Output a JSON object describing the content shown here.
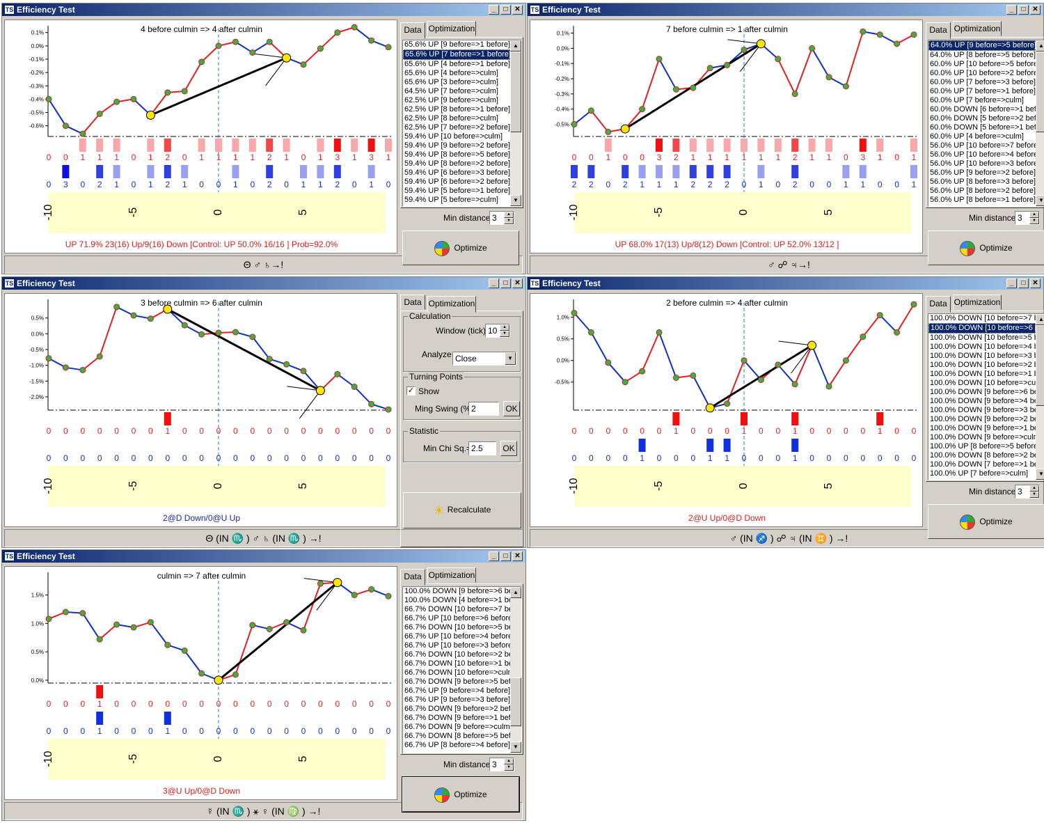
{
  "app": {
    "title": "Efficiency Test",
    "icon_text": "TS"
  },
  "tabs": {
    "data": "Data",
    "optimization": "Optimization"
  },
  "common": {
    "min_distance_label": "Min distance",
    "min_distance_value": "3",
    "optimize_label": "Optimize",
    "axis_ticks": [
      "-10",
      "-5",
      "0",
      "5"
    ]
  },
  "settings": {
    "calculation_group": "Calculation",
    "window_label": "Window (tick)",
    "window_value": "10",
    "analyze_label": "Analyze",
    "analyze_value": "Close",
    "turning_points_group": "Turning Points",
    "show_label": "Show",
    "ming_swing_label": "Ming Swing (%)",
    "ming_swing_value": "2",
    "statistic_group": "Statistic",
    "min_chi_label": "Min Chi Sq.=",
    "min_chi_value": "2.5",
    "ok_label": "OK",
    "recalculate_label": "Recalculate"
  },
  "windows": [
    {
      "caption": "4 before culmin => 4 after culmin",
      "status": "UP 71.9%  23(16) Up/9(16) Down [Control: UP 50.0%  16/16 ]  Prob=92.0%",
      "status_color": "#d42020",
      "bottom": "Θ ♂ ♄→!",
      "yticks": [
        "0.1%",
        "0.0%",
        "-0.1%",
        "-0.2%",
        "-0.3%",
        "-0.4%",
        "-0.5%",
        "-0.6%"
      ],
      "ymin": -0.68,
      "ymax": 0.13,
      "ytickvals": [
        0.1,
        0,
        -0.1,
        -0.2,
        -0.3,
        -0.4,
        -0.5,
        -0.6
      ],
      "series": [
        -0.4,
        -0.6,
        -0.66,
        -0.51,
        -0.42,
        -0.4,
        -0.52,
        -0.35,
        -0.34,
        -0.12,
        0.0,
        0.03,
        -0.05,
        0.03,
        -0.09,
        -0.14,
        -0.02,
        0.1,
        0.14,
        0.04,
        -0.01
      ],
      "seg_colors": [
        "b",
        "b",
        "r",
        "r",
        "r",
        "b",
        "r",
        "r",
        "r",
        "r",
        "r",
        "b",
        "b",
        "r",
        "b",
        "r",
        "r",
        "r",
        "b",
        "b"
      ],
      "trend_from": 6,
      "trend_to": 14,
      "red_counts": [
        "0",
        "0",
        "1",
        "1",
        "1",
        "0",
        "1",
        "2",
        "0",
        "1",
        "1",
        "1",
        "1",
        "2",
        "1",
        "0",
        "1",
        "3",
        "1",
        "3",
        "1"
      ],
      "blue_counts": [
        "0",
        "3",
        "0",
        "2",
        "1",
        "0",
        "1",
        "2",
        "1",
        "0",
        "0",
        "1",
        "0",
        "2",
        "0",
        "1",
        "1",
        "2",
        "0",
        "1",
        "0"
      ],
      "list": [
        "65.6%  UP [9 before=>1 before]",
        "65.6%  UP [7 before=>1 before]",
        "65.6%  UP [4 before=>1 before]",
        "65.6%  UP [4 before=>culm]",
        "65.6%  UP [3 before=>culm]",
        "64.5%  UP [7 before=>culm]",
        "62.5%  UP [9 before=>culm]",
        "62.5%  UP [8 before=>1 before]",
        "62.5%  UP [8 before=>culm]",
        "62.5%  UP [7 before=>2 before]",
        "59.4%  UP [10 before=>culm]",
        "59.4%  UP [9 before=>2 before]",
        "59.4%  UP [8 before=>5 before]",
        "59.4%  UP [8 before=>2 before]",
        "59.4%  UP [6 before=>3 before]",
        "59.4%  UP [6 before=>2 before]",
        "59.4%  UP [5 before=>1 before]",
        "59.4%  UP [5 before=>culm]"
      ],
      "selected": 1
    },
    {
      "caption": "7 before culmin => 1 after culmin",
      "status": "UP 68.0%  17(13) Up/8(12) Down [Control: UP 52.0%  13/12 ]",
      "status_color": "#d42020",
      "bottom": "♂ ☍ ♃→!",
      "yticks": [
        "0.1%",
        "0.0%",
        "-0.1%",
        "-0.2%",
        "-0.3%",
        "-0.4%",
        "-0.5%"
      ],
      "ymin": -0.58,
      "ymax": 0.13,
      "ytickvals": [
        0.1,
        0,
        -0.1,
        -0.2,
        -0.3,
        -0.4,
        -0.5
      ],
      "series": [
        -0.5,
        -0.41,
        -0.55,
        -0.53,
        -0.4,
        -0.07,
        -0.27,
        -0.26,
        -0.13,
        -0.11,
        -0.01,
        0.03,
        -0.07,
        -0.3,
        0.0,
        -0.19,
        -0.25,
        0.11,
        0.09,
        0.03,
        0.09
      ],
      "seg_colors": [
        "b",
        "r",
        "r",
        "r",
        "r",
        "b",
        "r",
        "r",
        "b",
        "b",
        "b",
        "b",
        "r",
        "r",
        "b",
        "b",
        "r",
        "b",
        "b",
        "r"
      ],
      "trend_from": 3,
      "trend_to": 11,
      "red_counts": [
        "0",
        "0",
        "1",
        "0",
        "0",
        "3",
        "2",
        "1",
        "1",
        "1",
        "1",
        "1",
        "1",
        "2",
        "1",
        "1",
        "0",
        "3",
        "1",
        "0",
        "1"
      ],
      "blue_counts": [
        "2",
        "2",
        "0",
        "2",
        "1",
        "1",
        "1",
        "2",
        "2",
        "2",
        "0",
        "1",
        "0",
        "2",
        "0",
        "0",
        "1",
        "1",
        "0",
        "0",
        "1"
      ],
      "list": [
        "64.0%  UP [9 before=>5 before]",
        "64.0%  UP [8 before=>5 before]",
        "60.0%  UP [10 before=>5 before",
        "60.0%  UP [10 before=>2 before",
        "60.0%  UP [7 before=>3 before]",
        "60.0%  UP [7 before=>1 before]",
        "60.0%  UP [7 before=>culm]",
        "60.0%  DOWN [6 before=>1 bef",
        "60.0%  DOWN [5 before=>2 bef",
        "60.0%  DOWN [5 before=>1 bef",
        "60.0%  UP [4 before=>culm]",
        "56.0%  UP [10 before=>7 before",
        "56.0%  UP [10 before=>4 before",
        "56.0%  UP [10 before=>3 before",
        "56.0%  UP [9 before=>2 before]",
        "56.0%  UP [8 before=>3 before]",
        "56.0%  UP [8 before=>2 before]",
        "56.0%  UP [8 before=>1 before]"
      ],
      "selected": 0
    },
    {
      "caption": "3 before culmin => 6 after culmin",
      "status": "2@D Down/0@U Up",
      "status_color": "#1a2a9a",
      "bottom": "Θ (IN ♏ ) ♂ ♄ (IN ♏ ) →!",
      "yticks": [
        "0.5%",
        "0.0%",
        "-0.5%",
        "-1.0%",
        "-1.5%",
        "-2.0%"
      ],
      "ymin": -2.42,
      "ymax": 1.0,
      "ytickvals": [
        0.5,
        0,
        -0.5,
        -1.0,
        -1.5,
        -2.0
      ],
      "series": [
        -0.78,
        -1.07,
        -1.15,
        -0.72,
        0.85,
        0.58,
        0.48,
        0.78,
        0.27,
        -0.02,
        0.03,
        0.05,
        -0.1,
        -0.8,
        -0.97,
        -1.18,
        -1.8,
        -1.28,
        -1.68,
        -2.23,
        -2.4
      ],
      "seg_colors": [
        "b",
        "b",
        "r",
        "r",
        "b",
        "b",
        "r",
        "b",
        "b",
        "r",
        "r",
        "b",
        "b",
        "b",
        "b",
        "b",
        "r",
        "b",
        "b",
        "b"
      ],
      "trend_from": 7,
      "trend_to": 16,
      "red_counts": [
        "0",
        "0",
        "0",
        "0",
        "0",
        "0",
        "0",
        "1",
        "0",
        "0",
        "0",
        "0",
        "0",
        "0",
        "0",
        "0",
        "0",
        "0",
        "0",
        "0",
        "0"
      ],
      "blue_counts": [
        "0",
        "0",
        "0",
        "0",
        "0",
        "0",
        "0",
        "0",
        "0",
        "0",
        "0",
        "0",
        "0",
        "0",
        "0",
        "0",
        "0",
        "0",
        "0",
        "0",
        "0"
      ],
      "list": [],
      "selected": -1
    },
    {
      "caption": "2 before culmin => 4 after culmin",
      "status": "2@U Up/0@D Down",
      "status_color": "#d42020",
      "bottom": "♂ (IN ♐ ) ☍ ♃ (IN ♊ ) →!",
      "yticks": [
        "1.0%",
        "0.5%",
        "0.0%",
        "-0.5%"
      ],
      "ymin": -1.15,
      "ymax": 1.35,
      "ytickvals": [
        1.0,
        0.5,
        0,
        -0.5
      ],
      "series": [
        1.1,
        0.65,
        -0.05,
        -0.5,
        -0.25,
        0.65,
        -0.4,
        -0.35,
        -1.1,
        -1.0,
        0.0,
        -0.45,
        -0.1,
        -0.55,
        0.35,
        -0.6,
        0.0,
        0.55,
        1.05,
        0.65,
        1.3
      ],
      "seg_colors": [
        "b",
        "b",
        "b",
        "r",
        "r",
        "b",
        "r",
        "b",
        "b",
        "r",
        "b",
        "r",
        "b",
        "r",
        "b",
        "r",
        "r",
        "r",
        "b",
        "r"
      ],
      "trend_from": 8,
      "trend_to": 14,
      "red_counts": [
        "0",
        "0",
        "0",
        "0",
        "0",
        "0",
        "1",
        "0",
        "0",
        "0",
        "1",
        "0",
        "0",
        "1",
        "0",
        "0",
        "0",
        "0",
        "1",
        "0",
        "0"
      ],
      "blue_counts": [
        "0",
        "0",
        "0",
        "0",
        "1",
        "0",
        "0",
        "0",
        "1",
        "1",
        "0",
        "0",
        "0",
        "1",
        "0",
        "0",
        "0",
        "0",
        "0",
        "0",
        "0"
      ],
      "list": [
        "100.0%  DOWN [10 before=>7 b",
        "100.0%  DOWN [10 before=>6 b",
        "100.0%  DOWN [10 before=>5 b",
        "100.0%  DOWN [10 before=>4 b",
        "100.0%  DOWN [10 before=>3 b",
        "100.0%  DOWN [10 before=>2 b",
        "100.0%  DOWN [10 before=>1 b",
        "100.0%  DOWN [10 before=>cul",
        "100.0%  DOWN [9 before=>6 be",
        "100.0%  DOWN [9 before=>4 be",
        "100.0%  DOWN [9 before=>3 be",
        "100.0%  DOWN [9 before=>2 be",
        "100.0%  DOWN [9 before=>1 be",
        "100.0%  DOWN [9 before=>culm",
        "100.0%  UP [8 before=>5 before",
        "100.0%  DOWN [8 before=>2 be",
        "100.0%  DOWN [7 before=>1 be",
        "100.0%  UP [7 before=>culm]"
      ],
      "selected": 1
    },
    {
      "caption": "culmin => 7 after culmin",
      "status": "3@U Up/0@D Down",
      "status_color": "#d42020",
      "bottom": "☿ (IN ♏ ) ⚹ ♀ (IN ♍ ) →!",
      "yticks": [
        "1.5%",
        "1.0%",
        "0.5%",
        "0.0%"
      ],
      "ymin": -0.05,
      "ymax": 1.85,
      "ytickvals": [
        1.5,
        1.0,
        0.5,
        0
      ],
      "series": [
        1.08,
        1.2,
        1.18,
        0.72,
        0.98,
        0.93,
        1.02,
        0.62,
        0.52,
        0.12,
        0.0,
        0.1,
        0.97,
        0.9,
        1.02,
        0.88,
        1.7,
        1.72,
        1.5,
        1.6,
        1.48
      ],
      "seg_colors": [
        "r",
        "b",
        "b",
        "r",
        "b",
        "r",
        "b",
        "b",
        "b",
        "b",
        "r",
        "r",
        "b",
        "r",
        "b",
        "r",
        "r",
        "b",
        "r",
        "b"
      ],
      "trend_from": 10,
      "trend_to": 17,
      "red_counts": [
        "0",
        "0",
        "0",
        "1",
        "0",
        "0",
        "0",
        "0",
        "0",
        "0",
        "0",
        "0",
        "0",
        "0",
        "0",
        "0",
        "0",
        "0",
        "0",
        "0",
        "0"
      ],
      "blue_counts": [
        "0",
        "0",
        "0",
        "1",
        "0",
        "0",
        "0",
        "1",
        "0",
        "0",
        "0",
        "0",
        "0",
        "0",
        "0",
        "0",
        "0",
        "0",
        "0",
        "0",
        "0"
      ],
      "list": [
        "100.0%  DOWN [9 before=>6 be",
        "100.0%  DOWN [4 before=>1 be",
        "66.7%  DOWN [10 before=>7 be",
        "66.7%  UP [10 before=>6 before",
        "66.7%  DOWN [10 before=>5 be",
        "66.7%  UP [10 before=>4 before",
        "66.7%  UP [10 before=>3 before",
        "66.7%  DOWN [10 before=>2 be",
        "66.7%  DOWN [10 before=>1 be",
        "66.7%  DOWN [10 before=>culn",
        "66.7%  DOWN [9 before=>5 bef",
        "66.7%  UP [9 before=>4 before]",
        "66.7%  UP [9 before=>3 before]",
        "66.7%  DOWN [9 before=>2 bef",
        "66.7%  DOWN [9 before=>1 bef",
        "66.7%  DOWN [9 before=>culm]",
        "66.7%  DOWN [8 before=>5 bef",
        "66.7%  UP [8 before=>4 before]"
      ],
      "selected": -1
    }
  ]
}
